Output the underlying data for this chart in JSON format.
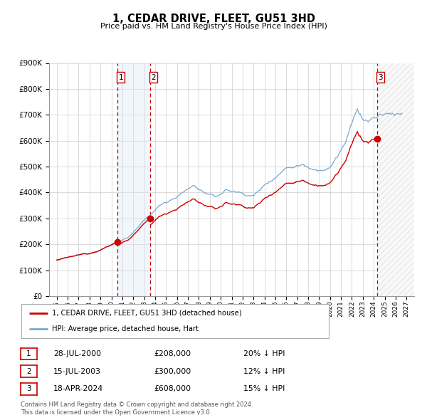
{
  "title": "1, CEDAR DRIVE, FLEET, GU51 3HD",
  "subtitle": "Price paid vs. HM Land Registry's House Price Index (HPI)",
  "legend_line1": "1, CEDAR DRIVE, FLEET, GU51 3HD (detached house)",
  "legend_line2": "HPI: Average price, detached house, Hart",
  "footnote1": "Contains HM Land Registry data © Crown copyright and database right 2024.",
  "footnote2": "This data is licensed under the Open Government Licence v3.0.",
  "transactions": [
    {
      "num": 1,
      "date": "28-JUL-2000",
      "price": 208000,
      "pct": "20%",
      "dir": "↓"
    },
    {
      "num": 2,
      "date": "15-JUL-2003",
      "price": 300000,
      "pct": "12%",
      "dir": "↓"
    },
    {
      "num": 3,
      "date": "18-APR-2024",
      "price": 608000,
      "pct": "15%",
      "dir": "↓"
    }
  ],
  "price_color": "#cc0000",
  "hpi_color": "#7aa8d2",
  "vline_color": "#cc0000",
  "shading_color": "#d8e8f5",
  "hatch_color": "#cccccc",
  "ylim": [
    0,
    900000
  ],
  "yticks": [
    0,
    100000,
    200000,
    300000,
    400000,
    500000,
    600000,
    700000,
    800000,
    900000
  ],
  "bg_color": "#ffffff",
  "grid_color": "#cccccc",
  "transaction_dates_decimal": [
    2000.555,
    2003.537,
    2024.297
  ],
  "transaction_prices": [
    208000,
    300000,
    608000
  ],
  "xlim_left": 1994.3,
  "xlim_right": 2027.7
}
